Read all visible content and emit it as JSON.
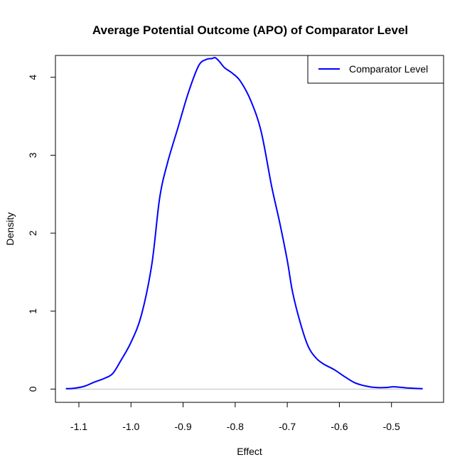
{
  "chart_data": {
    "type": "line",
    "title": "Average Potential Outcome (APO) of Comparator Level",
    "xlabel": "Effect",
    "ylabel": "Density",
    "xlim": [
      -1.145,
      -0.4
    ],
    "ylim": [
      -0.17,
      4.28
    ],
    "xticks": [
      -1.1,
      -1.0,
      -0.9,
      -0.8,
      -0.7,
      -0.6,
      -0.5
    ],
    "xtick_labels": [
      "-1.1",
      "-1.0",
      "-0.9",
      "-0.8",
      "-0.7",
      "-0.6",
      "-0.5"
    ],
    "yticks": [
      0,
      1,
      2,
      3,
      4
    ],
    "ytick_labels": [
      "0",
      "1",
      "2",
      "3",
      "4"
    ],
    "baseline": 0,
    "baseline_color": "#bebebe",
    "legend_position": "top-right",
    "series": [
      {
        "name": "Comparator Level",
        "color": "#0000ff",
        "x": [
          -1.125,
          -1.11,
          -1.09,
          -1.07,
          -1.05,
          -1.035,
          -1.02,
          -1.0,
          -0.98,
          -0.96,
          -0.945,
          -0.93,
          -0.91,
          -0.89,
          -0.87,
          -0.855,
          -0.845,
          -0.838,
          -0.83,
          -0.82,
          -0.805,
          -0.79,
          -0.77,
          -0.75,
          -0.73,
          -0.715,
          -0.7,
          -0.69,
          -0.675,
          -0.66,
          -0.645,
          -0.63,
          -0.61,
          -0.59,
          -0.57,
          -0.55,
          -0.53,
          -0.51,
          -0.495,
          -0.47,
          -0.44
        ],
        "values": [
          0.005,
          0.01,
          0.035,
          0.09,
          0.14,
          0.2,
          0.36,
          0.6,
          0.95,
          1.6,
          2.45,
          2.9,
          3.35,
          3.8,
          4.15,
          4.23,
          4.24,
          4.25,
          4.2,
          4.12,
          4.05,
          3.95,
          3.7,
          3.3,
          2.6,
          2.15,
          1.65,
          1.25,
          0.85,
          0.55,
          0.4,
          0.32,
          0.25,
          0.16,
          0.08,
          0.04,
          0.02,
          0.02,
          0.03,
          0.015,
          0.005
        ]
      }
    ]
  }
}
